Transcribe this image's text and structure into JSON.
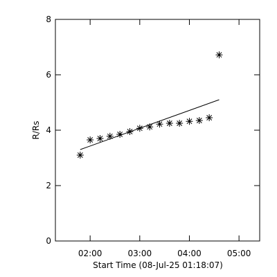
{
  "chart_data": {
    "type": "scatter",
    "ylabel": "R/Rs",
    "xlabel": "Start Time (08-Jul-25 01:18:07)",
    "xlim": [
      "01:18",
      "05:25"
    ],
    "xticks": [
      "02:00",
      "03:00",
      "04:00",
      "05:00"
    ],
    "ylim": [
      0,
      8
    ],
    "yticks": [
      0,
      2,
      4,
      6,
      8
    ],
    "color": "#000000",
    "x": [
      "01:48",
      "02:00",
      "02:12",
      "02:24",
      "02:36",
      "02:48",
      "03:00",
      "03:12",
      "03:24",
      "03:36",
      "03:48",
      "04:00",
      "04:12",
      "04:24",
      "04:36"
    ],
    "values": [
      3.1,
      3.65,
      3.7,
      3.78,
      3.85,
      3.95,
      4.07,
      4.12,
      4.22,
      4.25,
      4.25,
      4.32,
      4.35,
      4.45,
      6.72
    ],
    "fit": {
      "x": [
        "01:48",
        "04:36"
      ],
      "values": [
        3.3,
        5.1
      ]
    }
  }
}
